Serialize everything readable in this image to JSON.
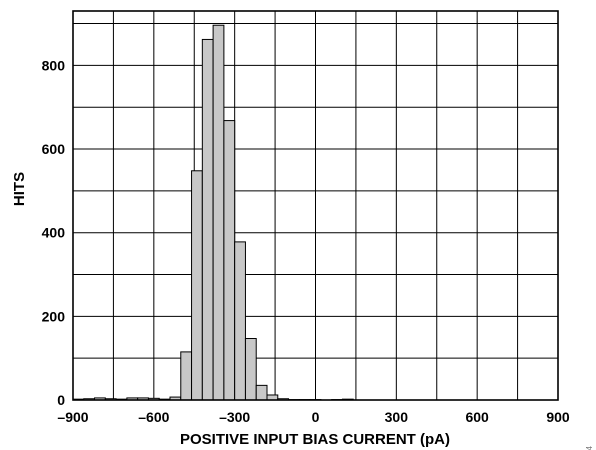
{
  "chart_data": {
    "type": "bar",
    "title": "",
    "xlabel": "POSITIVE INPUT BIAS CURRENT (pA)",
    "ylabel": "HITS",
    "xlim": [
      -900,
      900
    ],
    "ylim": [
      0,
      930
    ],
    "xticks": [
      -900,
      -600,
      -300,
      0,
      300,
      600,
      900
    ],
    "yticks": [
      0,
      200,
      400,
      600,
      800
    ],
    "grid": true,
    "bin_width": 40,
    "bin_starts": [
      -900,
      -860,
      -820,
      -780,
      -740,
      -700,
      -660,
      -620,
      -580,
      -540,
      -500,
      -460,
      -420,
      -380,
      -340,
      -300,
      -260,
      -220,
      -180,
      -140,
      -100,
      -60,
      -20,
      20,
      60,
      100
    ],
    "values": [
      2,
      3,
      5,
      3,
      2,
      5,
      5,
      4,
      2,
      7,
      115,
      548,
      862,
      896,
      668,
      378,
      147,
      35,
      12,
      3,
      1,
      1,
      1,
      0,
      1,
      2
    ],
    "figure_id": "004",
    "colors": {
      "bar_fill": "#c8c8c8",
      "bar_edge": "#000000",
      "grid": "#000000"
    }
  }
}
